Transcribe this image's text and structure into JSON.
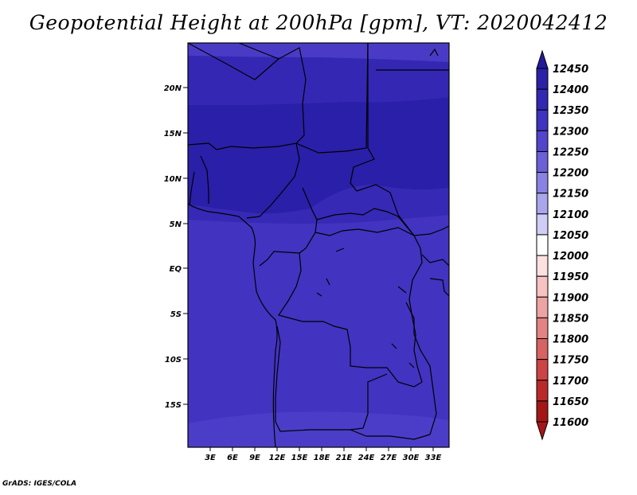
{
  "title": "Geopotential Height at 200hPa [gpm], VT: 2020042412",
  "credit": "GrADS: IGES/COLA",
  "map": {
    "lat_labels": [
      "20N",
      "15N",
      "10N",
      "5N",
      "EQ",
      "5S",
      "10S",
      "15S"
    ],
    "lon_labels": [
      "3E",
      "6E",
      "9E",
      "12E",
      "15E",
      "18E",
      "21E",
      "24E",
      "27E",
      "30E",
      "33E"
    ],
    "region": "Central Africa",
    "fill_colors": {
      "band_12400_12450": "#2a1fa8",
      "band_12350_12400": "#3427b3",
      "band_12300_12350": "#4233c0"
    }
  },
  "colorbar": {
    "levels": [
      "12450",
      "12400",
      "12350",
      "12300",
      "12250",
      "12200",
      "12150",
      "12100",
      "12050",
      "12000",
      "11950",
      "11900",
      "11850",
      "11800",
      "11750",
      "11700",
      "11650",
      "11600"
    ],
    "colors": [
      "#231a9a",
      "#2a21a6",
      "#3328b3",
      "#3f33bf",
      "#5245cb",
      "#6b60d7",
      "#8a82e2",
      "#aaa6ec",
      "#cfcdf5",
      "#ffffff",
      "#fde1e1",
      "#f7c2c2",
      "#eea3a3",
      "#e38383",
      "#d86363",
      "#cc4444",
      "#bb2a2a",
      "#a51717"
    ]
  }
}
